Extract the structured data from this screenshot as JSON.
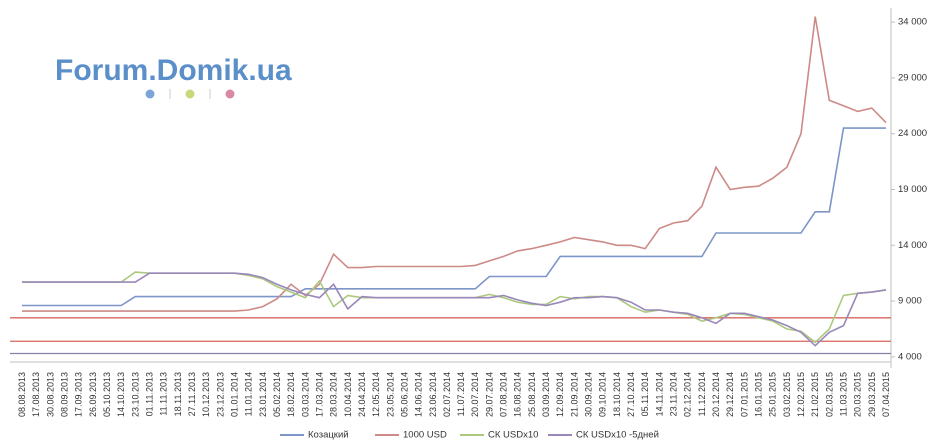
{
  "chart_data": {
    "type": "line",
    "logo": "Forum.Domik.ua",
    "categories": [
      "08.08.2013",
      "17.08.2013",
      "30.08.2013",
      "08.09.2013",
      "17.09.2013",
      "26.09.2013",
      "05.10.2013",
      "14.10.2013",
      "23.10.2013",
      "01.11.2013",
      "11.11.2013",
      "18.11.2013",
      "27.11.2013",
      "10.12.2013",
      "23.12.2013",
      "01.01.2014",
      "11.01.2014",
      "23.01.2014",
      "05.02.2014",
      "18.02.2014",
      "03.03.2014",
      "17.03.2014",
      "28.03.2014",
      "10.04.2014",
      "24.04.2014",
      "12.05.2014",
      "23.05.2014",
      "05.06.2014",
      "14.06.2014",
      "23.06.2014",
      "02.07.2014",
      "11.07.2014",
      "20.07.2014",
      "29.07.2014",
      "07.08.2014",
      "16.08.2014",
      "25.08.2014",
      "03.09.2014",
      "12.09.2014",
      "21.09.2014",
      "30.09.2014",
      "09.10.2014",
      "18.10.2014",
      "27.10.2014",
      "05.11.2014",
      "14.11.2014",
      "23.11.2014",
      "02.12.2014",
      "11.12.2014",
      "20.12.2014",
      "29.12.2014",
      "07.01.2015",
      "16.01.2015",
      "25.01.2015",
      "03.02.2015",
      "12.02.2015",
      "21.02.2015",
      "02.03.2015",
      "11.03.2015",
      "20.03.2015",
      "29.03.2015",
      "07.04.2015"
    ],
    "series": [
      {
        "name": "Козацкий",
        "color": "#7d95c8",
        "values": [
          8600,
          8600,
          8600,
          8600,
          8600,
          8600,
          8600,
          8600,
          9400,
          9400,
          9400,
          9400,
          9400,
          9400,
          9400,
          9400,
          9400,
          9400,
          9400,
          9400,
          10100,
          10100,
          10100,
          10100,
          10100,
          10100,
          10100,
          10100,
          10100,
          10100,
          10100,
          10100,
          10100,
          11200,
          11200,
          11200,
          11200,
          11200,
          13000,
          13000,
          13000,
          13000,
          13000,
          13000,
          13000,
          13000,
          13000,
          13000,
          13000,
          15100,
          15100,
          15100,
          15100,
          15100,
          15100,
          15100,
          17000,
          17000,
          24500,
          24500,
          24500,
          24500
        ]
      },
      {
        "name": "1000 USD",
        "color": "#cd8a86",
        "values": [
          8100,
          8100,
          8100,
          8100,
          8100,
          8100,
          8100,
          8100,
          8100,
          8100,
          8100,
          8100,
          8100,
          8100,
          8100,
          8100,
          8200,
          8500,
          9200,
          10500,
          9500,
          10500,
          13200,
          12000,
          12000,
          12100,
          12100,
          12100,
          12100,
          12100,
          12100,
          12100,
          12200,
          12600,
          13000,
          13500,
          13700,
          14000,
          14300,
          14700,
          14500,
          14300,
          14000,
          14000,
          13700,
          15500,
          16000,
          16200,
          17500,
          21000,
          19000,
          19200,
          19300,
          20000,
          21000,
          24000,
          34500,
          27000,
          26500,
          26000,
          26300,
          25000
        ]
      },
      {
        "name": "СК USDx10",
        "color": "#adc97e",
        "values": [
          10700,
          10700,
          10700,
          10700,
          10700,
          10700,
          10700,
          10700,
          11600,
          11500,
          11500,
          11500,
          11500,
          11500,
          11500,
          11500,
          11300,
          11000,
          10300,
          9800,
          9300,
          10800,
          8500,
          9500,
          9300,
          9300,
          9300,
          9300,
          9300,
          9300,
          9300,
          9300,
          9300,
          9600,
          9300,
          8900,
          8700,
          8700,
          9400,
          9200,
          9400,
          9400,
          9300,
          8500,
          8000,
          8200,
          8000,
          7800,
          7200,
          7500,
          7900,
          7800,
          7500,
          7200,
          6500,
          6300,
          5300,
          6500,
          9500,
          9700,
          9800,
          10000
        ]
      },
      {
        "name": "СК USDx10 -5дней",
        "color": "#9a88ba",
        "values": [
          10700,
          10700,
          10700,
          10700,
          10700,
          10700,
          10700,
          10700,
          10700,
          11500,
          11500,
          11500,
          11500,
          11500,
          11500,
          11500,
          11400,
          11100,
          10500,
          10000,
          9600,
          9300,
          10500,
          8300,
          9400,
          9300,
          9300,
          9300,
          9300,
          9300,
          9300,
          9300,
          9300,
          9300,
          9500,
          9100,
          8800,
          8600,
          8900,
          9300,
          9300,
          9400,
          9300,
          8900,
          8200,
          8200,
          8000,
          7900,
          7500,
          7000,
          7900,
          7900,
          7600,
          7300,
          6800,
          6200,
          5000,
          6200,
          6800,
          9700,
          9800,
          10000
        ]
      }
    ],
    "reference_lines": [
      {
        "value": 7500,
        "color": "#d9665c"
      },
      {
        "value": 5400,
        "color": "#d9665c"
      },
      {
        "value": 4300,
        "color": "#8a7fa8"
      }
    ],
    "ylim": [
      3000,
      35000
    ],
    "yticks": [
      {
        "value": 4000,
        "label": "4 000"
      },
      {
        "value": 9000,
        "label": "9 000"
      },
      {
        "value": 14000,
        "label": "14 000"
      },
      {
        "value": 19000,
        "label": "19 000"
      },
      {
        "value": 24000,
        "label": "24 000"
      },
      {
        "value": 29000,
        "label": "29 000"
      },
      {
        "value": 34000,
        "label": "34 000"
      }
    ],
    "logo_dots": [
      "#7da6d6",
      "#c7d97a",
      "#d98aa3"
    ],
    "axis_color": "#bfbfbf"
  }
}
